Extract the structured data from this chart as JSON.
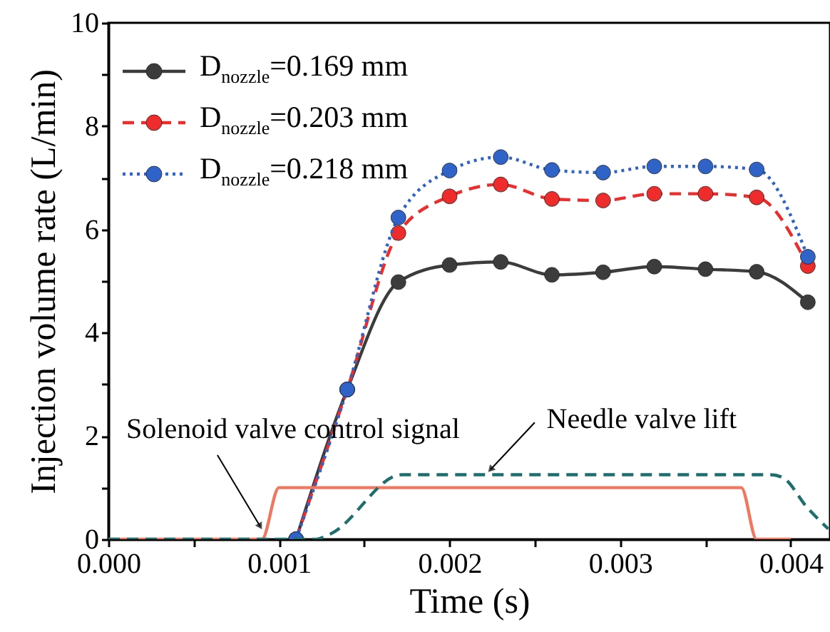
{
  "chart_data": {
    "type": "line",
    "xlabel": "Time (s)",
    "ylabel": "Injection volume rate (L/min)",
    "xlim": [
      0,
      0.00423
    ],
    "ylim": [
      0,
      10
    ],
    "xticks": [
      {
        "value": 0,
        "label": "0.000"
      },
      {
        "value": 0.0005,
        "label": null
      },
      {
        "value": 0.001,
        "label": "0.001"
      },
      {
        "value": 0.0015,
        "label": null
      },
      {
        "value": 0.002,
        "label": "0.002"
      },
      {
        "value": 0.0025,
        "label": null
      },
      {
        "value": 0.003,
        "label": "0.003"
      },
      {
        "value": 0.0035,
        "label": null
      },
      {
        "value": 0.004,
        "label": "0.004"
      }
    ],
    "yticks": [
      0,
      {
        "value": 1,
        "label": null
      },
      2,
      {
        "value": 3,
        "label": null
      },
      4,
      {
        "value": 5,
        "label": null
      },
      6,
      {
        "value": 7,
        "label": null
      },
      8,
      {
        "value": 9,
        "label": null
      },
      10
    ],
    "legend": "top left",
    "grid": false,
    "series": [
      {
        "name": "D$_{nozzle}$=0.169 mm",
        "color": "#3c3c3c",
        "marker": "circle",
        "line_style": "solid",
        "x": [
          0.0011,
          0.0014,
          0.0017,
          0.002,
          0.0023,
          0.0026,
          0.0029,
          0.0032,
          0.0035,
          0.0038,
          0.0041
        ],
        "values": [
          0,
          2.9,
          4.98,
          5.31,
          5.37,
          5.12,
          5.17,
          5.28,
          5.23,
          5.18,
          4.59
        ]
      },
      {
        "name": "D$_{nozzle}$=0.203 mm",
        "color": "#ee2c2c",
        "marker": "circle",
        "line_style": "dashed",
        "x": [
          0.0011,
          0.0014,
          0.0017,
          0.002,
          0.0023,
          0.0026,
          0.0029,
          0.0032,
          0.0035,
          0.0038,
          0.0041
        ],
        "values": [
          0,
          2.9,
          5.93,
          6.64,
          6.87,
          6.59,
          6.56,
          6.69,
          6.69,
          6.62,
          5.29
        ]
      },
      {
        "name": "D$_{nozzle}$=0.218 mm",
        "color": "#2f63c8",
        "marker": "circle",
        "line_style": "dotted",
        "x": [
          0.0011,
          0.0014,
          0.0017,
          0.002,
          0.0023,
          0.0026,
          0.0029,
          0.0032,
          0.0035,
          0.0038,
          0.0041
        ],
        "values": [
          0,
          2.9,
          6.23,
          7.14,
          7.4,
          7.15,
          7.1,
          7.22,
          7.22,
          7.16,
          5.47
        ]
      },
      {
        "color": "#f07860",
        "marker": "none",
        "line_style": "solid",
        "x": [
          0,
          0.0009,
          0.001,
          0.00371,
          0.0038,
          0.004
        ],
        "values": [
          0,
          0,
          1,
          1,
          0,
          0
        ]
      },
      {
        "color": "#1f6e6e",
        "marker": "none",
        "line_style": "dashed",
        "x": [
          0,
          0.00121,
          0.0013,
          0.00172,
          0.00388,
          0.00395,
          0.0041,
          0.00422
        ],
        "values": [
          0,
          0,
          0.1,
          1.25,
          1.25,
          1.2,
          0.6,
          0.2
        ]
      }
    ],
    "annotations": [
      {
        "text": "Solenoid valve control signal",
        "x": 0.00089,
        "y": 0.25
      },
      {
        "text": "Needle valve lift",
        "x": 0.00224,
        "y": 1.35
      }
    ]
  }
}
